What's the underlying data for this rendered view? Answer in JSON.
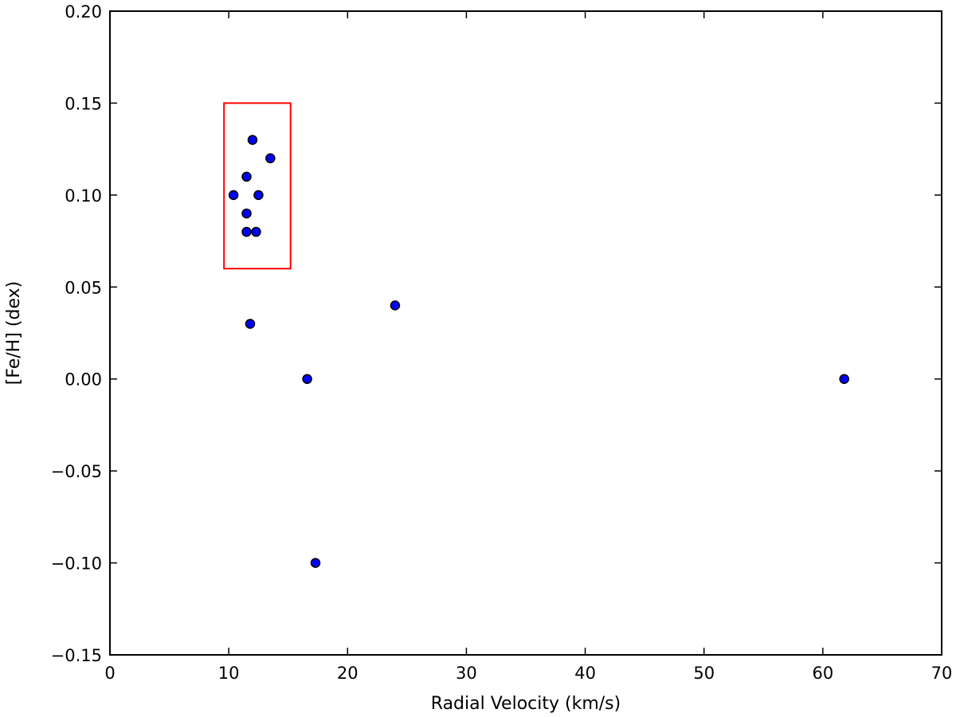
{
  "chart_data": {
    "type": "scatter",
    "title": "",
    "xlabel": "Radial Velocity (km/s)",
    "ylabel": "[Fe/H] (dex)",
    "xlim": [
      0,
      70
    ],
    "ylim": [
      -0.15,
      0.2
    ],
    "xticks": [
      0,
      10,
      20,
      30,
      40,
      50,
      60,
      70
    ],
    "xtick_labels": [
      "0",
      "10",
      "20",
      "30",
      "40",
      "50",
      "60",
      "70"
    ],
    "yticks": [
      0.2,
      0.15,
      0.1,
      0.05,
      0.0,
      -0.05,
      -0.1,
      -0.15
    ],
    "ytick_labels": [
      "0.20",
      "0.15",
      "0.10",
      "0.05",
      "0.00",
      "−0.05",
      "−0.10",
      "−0.15"
    ],
    "grid": false,
    "marker_color": "#0000ff",
    "points": [
      {
        "x": 10.4,
        "y": 0.1
      },
      {
        "x": 11.5,
        "y": 0.11
      },
      {
        "x": 11.5,
        "y": 0.09
      },
      {
        "x": 11.5,
        "y": 0.08
      },
      {
        "x": 12.0,
        "y": 0.13
      },
      {
        "x": 12.3,
        "y": 0.08
      },
      {
        "x": 12.5,
        "y": 0.1
      },
      {
        "x": 13.5,
        "y": 0.12
      },
      {
        "x": 11.8,
        "y": 0.03
      },
      {
        "x": 16.6,
        "y": 0.0
      },
      {
        "x": 17.3,
        "y": -0.1
      },
      {
        "x": 24.0,
        "y": 0.04
      },
      {
        "x": 61.8,
        "y": 0.0
      }
    ],
    "annotations": [
      {
        "type": "rectangle",
        "color": "#ff0000",
        "x_range": [
          9.6,
          15.2
        ],
        "y_range": [
          0.06,
          0.15
        ]
      }
    ]
  }
}
